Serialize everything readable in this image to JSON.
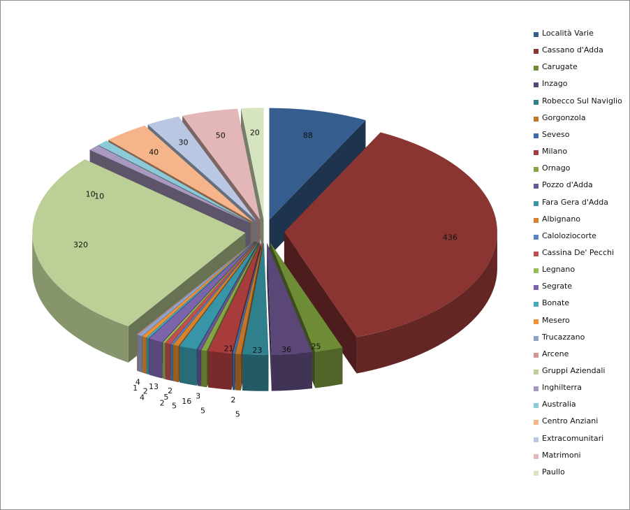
{
  "chart_data": {
    "type": "pie",
    "variant": "3d-exploded",
    "legend_position": "right",
    "categories": [
      "Località Varie",
      "Cassano d'Adda",
      "Carugate",
      "Inzago",
      "Robecco Sul Naviglio",
      "Gorgonzola",
      "Seveso",
      "Milano",
      "Ornago",
      "Pozzo d'Adda",
      "Fara Gera d'Adda",
      "Albignano",
      "Caloloziocorte",
      "Cassina De' Pecchi",
      "Legnano",
      "Segrate",
      "Bonate",
      "Mesero",
      "Trucazzano",
      "Arcene",
      "Gruppi Aziendali",
      "Inghilterra",
      "Australia",
      "Centro Anziani",
      "Extracomunitari",
      "Matrimoni",
      "Paullo"
    ],
    "values": [
      88,
      436,
      25,
      36,
      23,
      5,
      2,
      21,
      5,
      3,
      16,
      5,
      2,
      5,
      2,
      13,
      2,
      4,
      4,
      1,
      320,
      10,
      10,
      40,
      30,
      50,
      20
    ],
    "data_labels": [
      "88",
      "436",
      "25",
      "36",
      "23",
      "5",
      "2",
      "21",
      "5",
      "3",
      "16",
      "5",
      "2",
      "5",
      "2",
      "13",
      "2",
      "4",
      "4",
      "1",
      "320",
      "10",
      "10",
      "40",
      "30",
      "50",
      "20"
    ],
    "colors": [
      "#355d8e",
      "#8b3533",
      "#6e8b35",
      "#5a4778",
      "#2f7f8d",
      "#c0752c",
      "#3e6ea8",
      "#a83c3c",
      "#86a444",
      "#6a549a",
      "#3895a8",
      "#d8812c",
      "#5585c0",
      "#c05050",
      "#98bd52",
      "#7c64ac",
      "#48a8c0",
      "#ee9235",
      "#8ea4cc",
      "#d29594",
      "#bccf97",
      "#a999c0",
      "#8ccad8",
      "#f5b489",
      "#b9c7e2",
      "#e3b7b7",
      "#d7e4c0"
    ]
  }
}
